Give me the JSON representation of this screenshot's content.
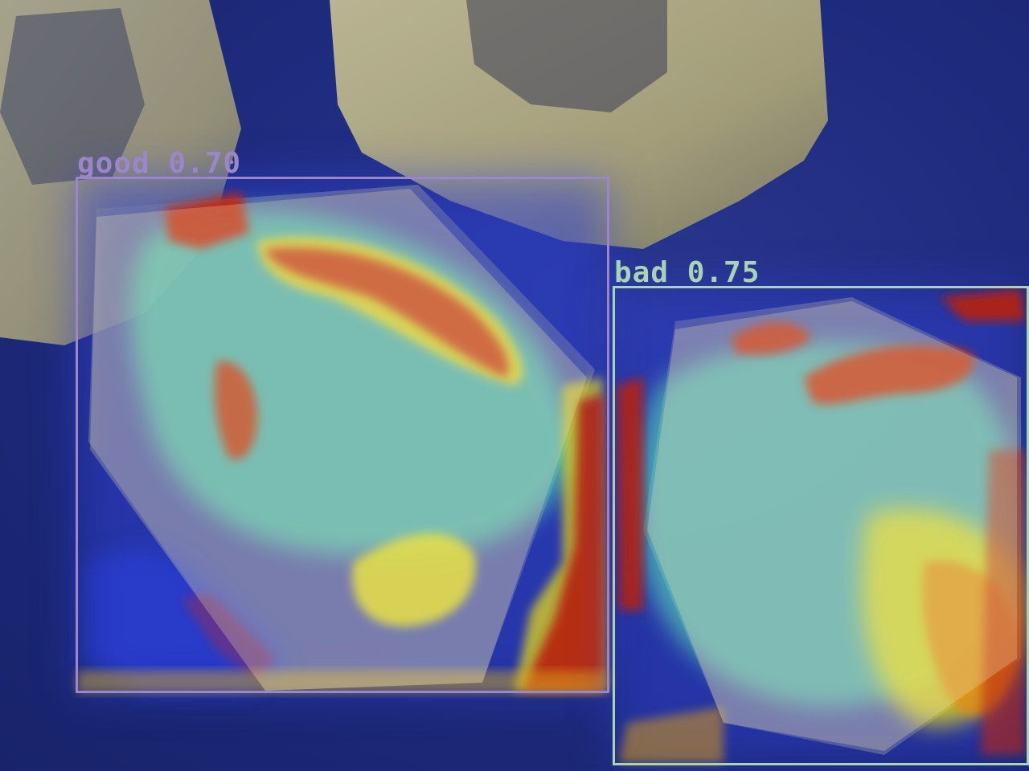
{
  "detections": {
    "good": {
      "label": "good",
      "score": "0.70",
      "text": "good 0.70",
      "color": "#9a86c8"
    },
    "bad": {
      "label": "bad",
      "score": "0.75",
      "text": "bad 0.75",
      "color": "#a8d4b4"
    }
  },
  "colors": {
    "background": "#1f2a78",
    "crystal": "#d8cf8c",
    "heat_low": "#1b2fc4",
    "heat_mid": "#5ff0b8",
    "heat_high": "#e8d81c",
    "heat_peak": "#c0260e"
  }
}
